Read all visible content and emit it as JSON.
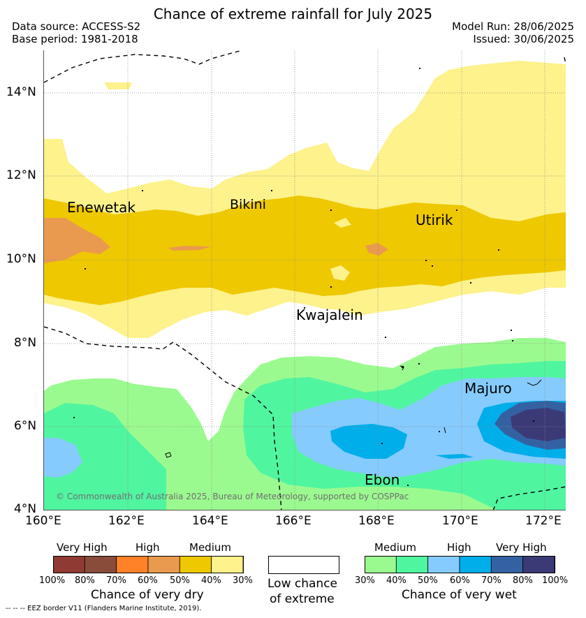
{
  "header": {
    "title": "Chance of extreme rainfall for July 2025",
    "data_source": "Data source: ACCESS-S2",
    "base_period": "Base period: 1981-2018",
    "model_run": "Model Run: 28/06/2025",
    "issued": "Issued: 30/06/2025"
  },
  "map": {
    "lat_labels": [
      "14°N",
      "12°N",
      "10°N",
      "8°N",
      "6°N",
      "4°N"
    ],
    "lon_labels": [
      "160°E",
      "162°E",
      "164°E",
      "166°E",
      "168°E",
      "170°E",
      "172°E"
    ],
    "place_labels": {
      "enewetak": "Enewetak",
      "bikini": "Bikini",
      "utirik": "Utirik",
      "kwajalein": "Kwajalein",
      "majuro": "Majuro",
      "ebon": "Ebon"
    },
    "copyright": "© Commonwealth of Australia 2025, Bureau of Meteorology, supported by COSPPac"
  },
  "legend": {
    "dry": {
      "words": [
        "Very High",
        "High",
        "Medium"
      ],
      "percents": [
        "100%",
        "80%",
        "70%",
        "60%",
        "50%",
        "40%",
        "30%"
      ],
      "caption": "Chance of very dry",
      "colors": [
        "#8f3a32",
        "#8a4c3a",
        "#ff8128",
        "#ea9a4e",
        "#eec800",
        "#fdf28b"
      ]
    },
    "neutral": {
      "caption_line1": "Low chance",
      "caption_line2": "of extreme"
    },
    "wet": {
      "words": [
        "Medium",
        "High",
        "Very High"
      ],
      "percents": [
        "30%",
        "40%",
        "50%",
        "60%",
        "70%",
        "80%",
        "100%"
      ],
      "caption": "Chance of very wet",
      "colors": [
        "#9bfa8f",
        "#50f5a0",
        "#86cbfd",
        "#00aeea",
        "#3461a1",
        "#3b3a77"
      ]
    },
    "footnote": "--  --  -- EEZ border V11 (Flanders Marine Institute, 2019)."
  }
}
